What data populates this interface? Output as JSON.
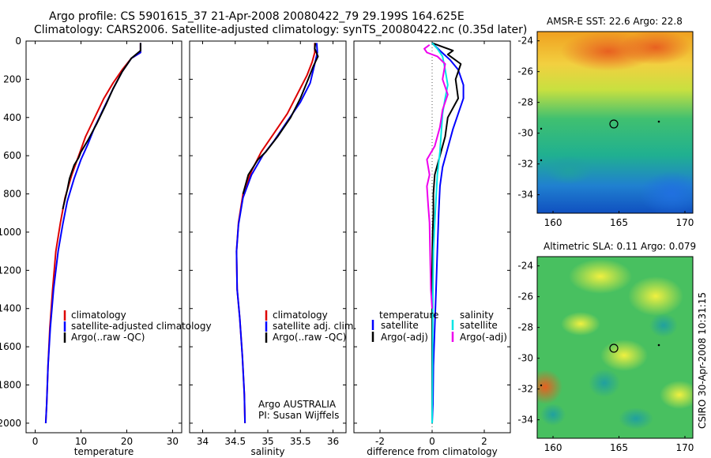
{
  "figure": {
    "title_line1": "Argo profile: CS 5901615_37 21-Apr-2008 20080422_79 29.199S 164.625E",
    "title_line2": "Climatology: CARS2006. Satellite-adjusted climatology: synTS_20080422.nc (0.35d later)",
    "side_text": "CSIRO 30-Apr-2008 10:31:15",
    "colors": {
      "red": "#dd0000",
      "blue": "#0000ff",
      "black": "#000000",
      "cyan": "#00e5e5",
      "magenta": "#ee00ee",
      "dotted": "#555555"
    }
  },
  "chart_data": [
    {
      "type": "line",
      "panel": "temperature",
      "xlabel": "temperature",
      "ylabel": "",
      "xlim": [
        -2,
        32
      ],
      "ylim": [
        2050,
        0
      ],
      "xticks": [
        0,
        10,
        20,
        30
      ],
      "yticks": [
        0,
        200,
        400,
        600,
        800,
        1000,
        1200,
        1400,
        1600,
        1800,
        2000
      ],
      "legend": {
        "position": "bottom-right",
        "entries": [
          "climatology",
          "satellite-adjusted climatology",
          "Argo(..raw -QC)"
        ]
      },
      "series": [
        {
          "name": "climatology",
          "color": "red",
          "points": [
            [
              23,
              10
            ],
            [
              23,
              60
            ],
            [
              21,
              90
            ],
            [
              19,
              150
            ],
            [
              17,
              220
            ],
            [
              15,
              300
            ],
            [
              13,
              400
            ],
            [
              11,
              500
            ],
            [
              9.5,
              600
            ],
            [
              8,
              700
            ],
            [
              6.5,
              820
            ],
            [
              5.5,
              950
            ],
            [
              4.5,
              1100
            ],
            [
              3.8,
              1300
            ],
            [
              3.2,
              1500
            ],
            [
              2.8,
              1700
            ],
            [
              2.5,
              1900
            ],
            [
              2.3,
              2000
            ]
          ]
        },
        {
          "name": "satellite-adjusted climatology",
          "color": "blue",
          "points": [
            [
              23,
              10
            ],
            [
              23,
              60
            ],
            [
              21,
              90
            ],
            [
              19,
              160
            ],
            [
              17,
              250
            ],
            [
              15,
              350
            ],
            [
              13,
              450
            ],
            [
              11.5,
              540
            ],
            [
              10,
              620
            ],
            [
              8.5,
              720
            ],
            [
              7,
              840
            ],
            [
              6,
              960
            ],
            [
              5,
              1100
            ],
            [
              4,
              1300
            ],
            [
              3.3,
              1500
            ],
            [
              2.8,
              1700
            ],
            [
              2.5,
              1900
            ],
            [
              2.3,
              2000
            ]
          ]
        },
        {
          "name": "Argo(..raw -QC)",
          "color": "black",
          "points": [
            [
              23,
              10
            ],
            [
              23,
              50
            ],
            [
              21,
              90
            ],
            [
              19,
              160
            ],
            [
              17,
              250
            ],
            [
              15.5,
              330
            ],
            [
              13.5,
              430
            ],
            [
              11.5,
              520
            ],
            [
              10,
              580
            ],
            [
              9.5,
              610
            ],
            [
              8.5,
              650
            ],
            [
              7.5,
              720
            ],
            [
              7,
              780
            ],
            [
              6,
              880
            ]
          ]
        }
      ]
    },
    {
      "type": "line",
      "panel": "salinity",
      "xlabel": "salinity",
      "ylabel": "",
      "xlim": [
        33.8,
        36.2
      ],
      "ylim": [
        2050,
        0
      ],
      "xticks": [
        34,
        34.5,
        35,
        35.5,
        36
      ],
      "yticks": [
        0,
        200,
        400,
        600,
        800,
        1000,
        1200,
        1400,
        1600,
        1800,
        2000
      ],
      "legend": {
        "position": "bottom-right",
        "entries": [
          "climatology",
          "satellite adj. clim.",
          "Argo(..raw -QC)"
        ]
      },
      "annotation": {
        "line1": "Argo AUSTRALIA",
        "line2": "PI: Susan Wijffels"
      },
      "series": [
        {
          "name": "climatology",
          "color": "red",
          "points": [
            [
              35.72,
              10
            ],
            [
              35.72,
              60
            ],
            [
              35.68,
              110
            ],
            [
              35.6,
              180
            ],
            [
              35.45,
              280
            ],
            [
              35.3,
              380
            ],
            [
              35.1,
              480
            ],
            [
              34.9,
              580
            ],
            [
              34.75,
              680
            ],
            [
              34.62,
              800
            ],
            [
              34.55,
              950
            ],
            [
              34.52,
              1100
            ],
            [
              34.53,
              1300
            ],
            [
              34.57,
              1450
            ],
            [
              34.61,
              1650
            ],
            [
              34.64,
              1850
            ],
            [
              34.65,
              2000
            ]
          ]
        },
        {
          "name": "satellite adj. clim.",
          "color": "blue",
          "points": [
            [
              35.75,
              10
            ],
            [
              35.76,
              60
            ],
            [
              35.72,
              120
            ],
            [
              35.65,
              220
            ],
            [
              35.5,
              320
            ],
            [
              35.3,
              420
            ],
            [
              35.1,
              520
            ],
            [
              34.92,
              600
            ],
            [
              34.75,
              700
            ],
            [
              34.62,
              820
            ],
            [
              34.55,
              960
            ],
            [
              34.52,
              1100
            ],
            [
              34.53,
              1300
            ],
            [
              34.57,
              1450
            ],
            [
              34.61,
              1650
            ],
            [
              34.64,
              1850
            ],
            [
              34.65,
              2000
            ]
          ]
        },
        {
          "name": "Argo(..raw -QC)",
          "color": "black",
          "points": [
            [
              35.73,
              10
            ],
            [
              35.72,
              40
            ],
            [
              35.77,
              80
            ],
            [
              35.7,
              130
            ],
            [
              35.62,
              200
            ],
            [
              35.5,
              300
            ],
            [
              35.35,
              400
            ],
            [
              35.15,
              500
            ],
            [
              34.97,
              580
            ],
            [
              34.85,
              620
            ],
            [
              34.7,
              700
            ],
            [
              34.62,
              800
            ]
          ]
        }
      ]
    },
    {
      "type": "line",
      "panel": "difference",
      "xlabel": "difference from climatology",
      "ylabel": "",
      "xlim": [
        -3,
        3
      ],
      "ylim": [
        2050,
        0
      ],
      "xticks": [
        -2,
        0,
        2
      ],
      "yticks": [
        0,
        200,
        400,
        600,
        800,
        1000,
        1200,
        1400,
        1600,
        1800,
        2000
      ],
      "legend": {
        "position": "bottom",
        "col1_header": "temperature",
        "col2_header": "salinity",
        "entries": [
          "satellite",
          "Argo(-adj)",
          "satellite",
          "Argo(-adj)"
        ]
      },
      "series": [
        {
          "name": "temperature satellite",
          "color": "blue",
          "points": [
            [
              0,
              10
            ],
            [
              0.3,
              50
            ],
            [
              0.7,
              100
            ],
            [
              1,
              150
            ],
            [
              1.2,
              230
            ],
            [
              1.2,
              300
            ],
            [
              1,
              380
            ],
            [
              0.8,
              460
            ],
            [
              0.6,
              560
            ],
            [
              0.4,
              660
            ],
            [
              0.3,
              760
            ],
            [
              0.25,
              900
            ],
            [
              0.2,
              1100
            ],
            [
              0.15,
              1300
            ],
            [
              0.1,
              1500
            ],
            [
              0.05,
              1700
            ],
            [
              0.03,
              1900
            ],
            [
              0,
              2000
            ]
          ]
        },
        {
          "name": "temperature Argo(-adj)",
          "color": "black",
          "points": [
            [
              0,
              10
            ],
            [
              0.4,
              30
            ],
            [
              0.8,
              50
            ],
            [
              0.6,
              70
            ],
            [
              1.1,
              120
            ],
            [
              0.9,
              200
            ],
            [
              1,
              300
            ],
            [
              0.6,
              400
            ],
            [
              0.5,
              500
            ],
            [
              0.3,
              600
            ],
            [
              0.1,
              700
            ],
            [
              0.05,
              800
            ],
            [
              0.05,
              900
            ],
            [
              0.02,
              1000
            ],
            [
              0.01,
              1100
            ],
            [
              0,
              1200
            ],
            [
              0,
              1300
            ],
            [
              0,
              1500
            ],
            [
              0,
              1700
            ],
            [
              0,
              2000
            ]
          ]
        },
        {
          "name": "salinity satellite",
          "color": "cyan",
          "points": [
            [
              0,
              10
            ],
            [
              0.2,
              40
            ],
            [
              0.4,
              80
            ],
            [
              0.5,
              150
            ],
            [
              0.6,
              230
            ],
            [
              0.5,
              300
            ],
            [
              0.4,
              380
            ],
            [
              0.35,
              480
            ],
            [
              0.3,
              580
            ],
            [
              0.2,
              700
            ],
            [
              0.15,
              820
            ],
            [
              0.1,
              950
            ],
            [
              0.05,
              1100
            ],
            [
              0.03,
              1300
            ],
            [
              0.02,
              1500
            ],
            [
              0.01,
              1800
            ],
            [
              0,
              2000
            ]
          ]
        },
        {
          "name": "salinity Argo(-adj)",
          "color": "magenta",
          "points": [
            [
              -0.1,
              20
            ],
            [
              -0.3,
              40
            ],
            [
              -0.2,
              60
            ],
            [
              0.2,
              80
            ],
            [
              0.5,
              120
            ],
            [
              0.4,
              200
            ],
            [
              0.6,
              280
            ],
            [
              0.4,
              360
            ],
            [
              0.3,
              450
            ],
            [
              0.1,
              550
            ],
            [
              -0.2,
              620
            ],
            [
              -0.1,
              700
            ],
            [
              -0.2,
              760
            ],
            [
              -0.15,
              860
            ],
            [
              -0.1,
              950
            ],
            [
              -0.08,
              1100
            ],
            [
              -0.05,
              1300
            ],
            [
              0,
              1400
            ]
          ]
        }
      ]
    },
    {
      "type": "heatmap",
      "panel": "sst-map",
      "title": "AMSR-E SST: 22.6 Argo: 22.8",
      "xticks": [
        160,
        165,
        170
      ],
      "yticks": [
        -24,
        -26,
        -28,
        -30,
        -32,
        -34
      ],
      "xlim": [
        158.8,
        170.6
      ],
      "ylim": [
        -35.2,
        -23.4
      ],
      "argo_location": [
        164.625,
        -29.199
      ],
      "grid": false
    },
    {
      "type": "heatmap",
      "panel": "sla-map",
      "title": "Altimetric SLA: 0.11 Argo: 0.079",
      "xticks": [
        160,
        165,
        170
      ],
      "yticks": [
        -24,
        -26,
        -28,
        -30,
        -32,
        -34
      ],
      "xlim": [
        158.8,
        170.6
      ],
      "ylim": [
        -35.2,
        -23.4
      ],
      "argo_location": [
        164.625,
        -29.199
      ],
      "grid": false
    }
  ]
}
